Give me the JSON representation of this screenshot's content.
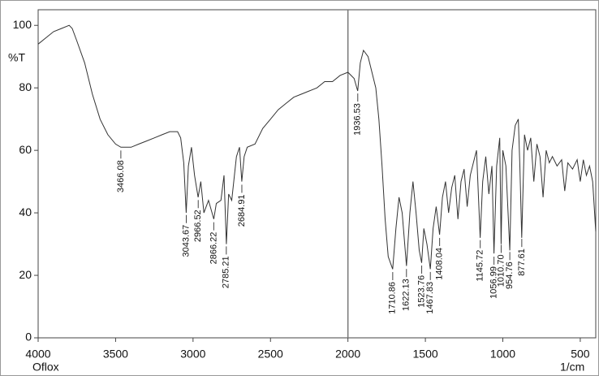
{
  "chart_data": {
    "type": "line",
    "y_label": "%T",
    "x_label": "1/cm",
    "sample": "Oflox",
    "x": [
      4000,
      3950,
      3900,
      3850,
      3800,
      3780,
      3750,
      3700,
      3650,
      3600,
      3550,
      3500,
      3466,
      3400,
      3350,
      3300,
      3250,
      3200,
      3150,
      3100,
      3080,
      3060,
      3044,
      3030,
      3010,
      2990,
      2967,
      2950,
      2930,
      2900,
      2866,
      2850,
      2820,
      2800,
      2785,
      2770,
      2750,
      2720,
      2700,
      2685,
      2670,
      2650,
      2600,
      2550,
      2500,
      2450,
      2400,
      2350,
      2300,
      2250,
      2200,
      2150,
      2100,
      2050,
      2000,
      1960,
      1937,
      1920,
      1900,
      1870,
      1850,
      1820,
      1800,
      1780,
      1760,
      1740,
      1711,
      1690,
      1670,
      1650,
      1622,
      1600,
      1580,
      1560,
      1540,
      1524,
      1510,
      1490,
      1468,
      1450,
      1430,
      1408,
      1390,
      1370,
      1350,
      1330,
      1310,
      1290,
      1270,
      1250,
      1230,
      1210,
      1190,
      1170,
      1146,
      1130,
      1110,
      1090,
      1070,
      1057,
      1040,
      1020,
      1011,
      1000,
      980,
      955,
      940,
      920,
      900,
      890,
      878,
      860,
      840,
      820,
      800,
      780,
      760,
      740,
      720,
      700,
      680,
      650,
      620,
      600,
      580,
      550,
      520,
      500,
      480,
      460,
      440,
      420,
      400
    ],
    "series": [
      {
        "name": "Oflox",
        "color": "#333333",
        "values": [
          94,
          96,
          98,
          99,
          100,
          99,
          95,
          88,
          78,
          70,
          65,
          62,
          61,
          61,
          62,
          63,
          64,
          65,
          66,
          66,
          64,
          56,
          40,
          55,
          61,
          52,
          45,
          50,
          40,
          44,
          38,
          43,
          44,
          52,
          30,
          46,
          44,
          58,
          61,
          50,
          58,
          61,
          62,
          67,
          70,
          73,
          75,
          77,
          78,
          79,
          80,
          82,
          82,
          84,
          85,
          83,
          79,
          88,
          92,
          90,
          86,
          80,
          70,
          55,
          38,
          26,
          22,
          35,
          45,
          40,
          23,
          40,
          50,
          40,
          28,
          24,
          35,
          30,
          22,
          35,
          42,
          33,
          45,
          50,
          40,
          48,
          52,
          38,
          50,
          54,
          42,
          52,
          56,
          60,
          32,
          50,
          58,
          46,
          55,
          27,
          55,
          64,
          30,
          60,
          55,
          28,
          60,
          68,
          70,
          55,
          32,
          65,
          60,
          64,
          50,
          62,
          58,
          45,
          60,
          56,
          58,
          55,
          57,
          47,
          56,
          54,
          57,
          50,
          57,
          52,
          55,
          50,
          34
        ]
      }
    ],
    "xlim": [
      4000,
      400
    ],
    "ylim": [
      0,
      105
    ],
    "xticks": [
      4000,
      3500,
      3000,
      2500,
      2000,
      1500,
      1000,
      500
    ],
    "yticks": [
      0,
      20,
      40,
      60,
      80,
      100
    ],
    "vline": 2000,
    "annotations": [
      {
        "x": 3466.08,
        "label": "3466.08"
      },
      {
        "x": 3043.67,
        "label": "3043.67"
      },
      {
        "x": 2966.52,
        "label": "2966.52"
      },
      {
        "x": 2866.22,
        "label": "2866.22"
      },
      {
        "x": 2785.21,
        "label": "2785.21"
      },
      {
        "x": 2684.91,
        "label": "2684.91"
      },
      {
        "x": 1936.53,
        "label": "1936.53"
      },
      {
        "x": 1710.86,
        "label": "1710.86"
      },
      {
        "x": 1622.13,
        "label": "1622.13"
      },
      {
        "x": 1523.76,
        "label": "1523.76"
      },
      {
        "x": 1467.83,
        "label": "1467.83"
      },
      {
        "x": 1408.04,
        "label": "1408.04"
      },
      {
        "x": 1145.72,
        "label": "1145.72"
      },
      {
        "x": 1056.99,
        "label": "1056.99"
      },
      {
        "x": 1010.7,
        "label": "1010.70"
      },
      {
        "x": 954.76,
        "label": "954.76"
      },
      {
        "x": 877.61,
        "label": "877.61"
      }
    ]
  }
}
